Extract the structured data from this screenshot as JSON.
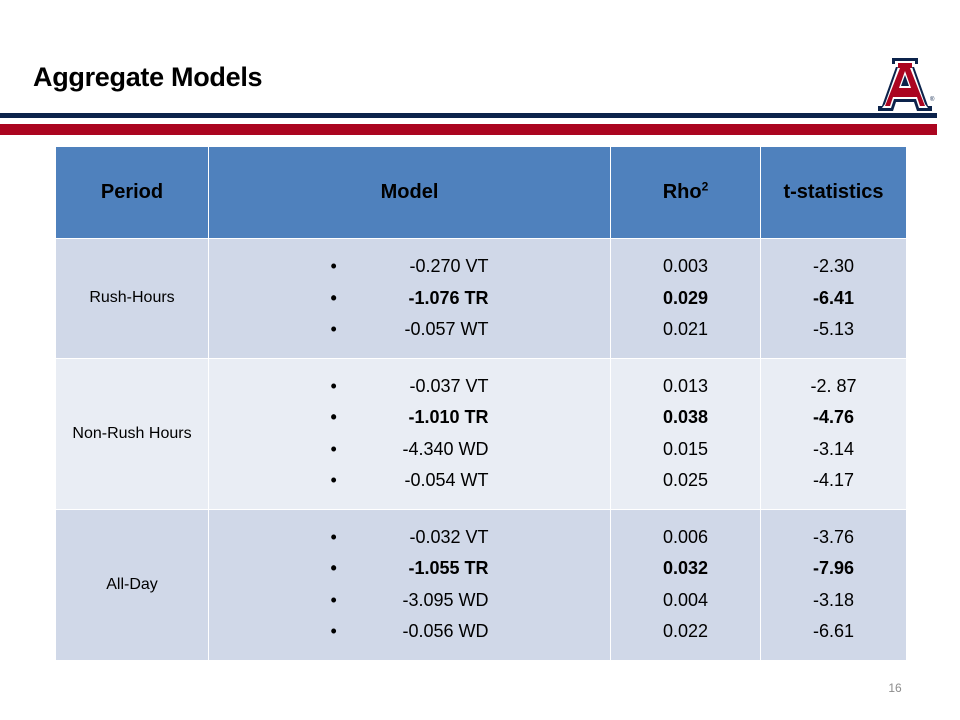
{
  "slide": {
    "title": "Aggregate Models",
    "page_number": "16",
    "logo_trademark": "®"
  },
  "colors": {
    "navy": "#0c234b",
    "red": "#ab0520",
    "header_blue": "#4f81bd",
    "row_dark": "#d0d8e8",
    "row_light": "#e9edf4"
  },
  "table": {
    "headers": {
      "period": "Period",
      "model": "Model",
      "rho": "Rho",
      "rho_sup": "2",
      "tstat": "t-statistics"
    },
    "rows": [
      {
        "period": "Rush-Hours",
        "model": [
          {
            "bullet": "•",
            "text": "-0.270 VT",
            "bold": false
          },
          {
            "bullet": "•",
            "text": "-1.076 TR",
            "bold": true
          },
          {
            "bullet": "•",
            "text": "-0.057 WT",
            "bold": false
          }
        ],
        "rho": [
          "0.003",
          "0.029",
          "0.021"
        ],
        "tstat": [
          "-2.30",
          "-6.41",
          "-5.13"
        ]
      },
      {
        "period": "Non-Rush Hours",
        "model": [
          {
            "bullet": "•",
            "text": "-0.037 VT",
            "bold": false
          },
          {
            "bullet": "•",
            "text": "-1.010 TR",
            "bold": true
          },
          {
            "bullet": "•",
            "text": "-4.340 WD",
            "bold": false
          },
          {
            "bullet": "•",
            "text": "-0.054 WT",
            "bold": false
          }
        ],
        "rho": [
          "0.013",
          "0.038",
          "0.015",
          "0.025"
        ],
        "tstat": [
          "-2. 87",
          "-4.76",
          "-3.14",
          "-4.17"
        ]
      },
      {
        "period": "All-Day",
        "model": [
          {
            "bullet": "•",
            "text": "-0.032 VT",
            "bold": false
          },
          {
            "bullet": "•",
            "text": "-1.055 TR",
            "bold": true
          },
          {
            "bullet": "•",
            "text": "-3.095 WD",
            "bold": false
          },
          {
            "bullet": "•",
            "text": "-0.056 WD",
            "bold": false
          }
        ],
        "rho": [
          "0.006",
          "0.032",
          "0.004",
          "0.022"
        ],
        "tstat": [
          "-3.76",
          "-7.96",
          "-3.18",
          "-6.61"
        ]
      }
    ]
  }
}
